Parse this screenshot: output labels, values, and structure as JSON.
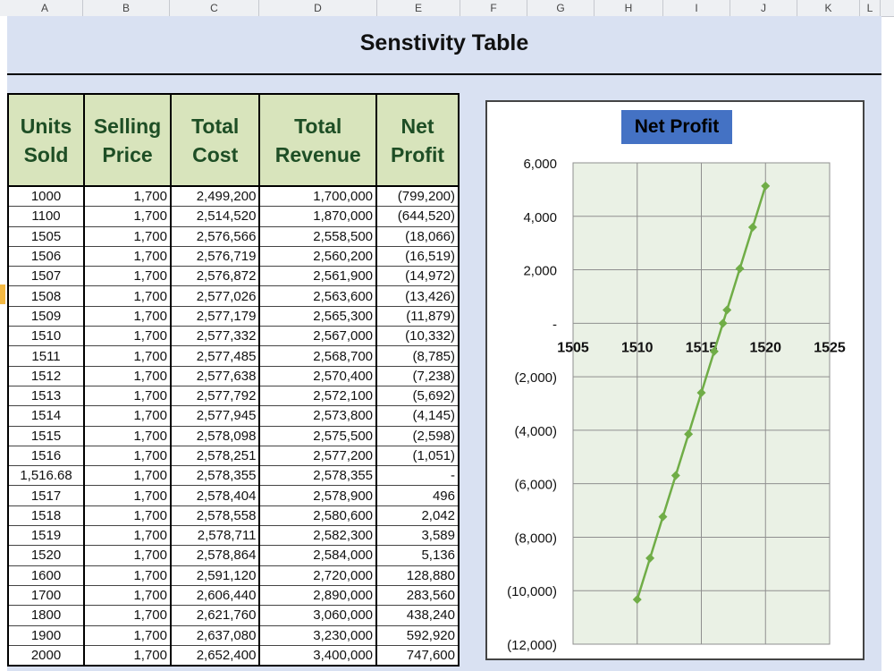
{
  "columns": [
    "A",
    "B",
    "C",
    "D",
    "E",
    "F",
    "G",
    "H",
    "I",
    "J",
    "K",
    "L"
  ],
  "title": "Senstivity Table",
  "table": {
    "headers": [
      {
        "line1": "Units",
        "line2": "Sold"
      },
      {
        "line1": "Selling",
        "line2": "Price"
      },
      {
        "line1": "Total",
        "line2": "Cost"
      },
      {
        "line1": "Total",
        "line2": "Revenue"
      },
      {
        "line1": "Net",
        "line2": "Profit"
      }
    ],
    "rows": [
      [
        "1000",
        "1,700",
        "2,499,200",
        "1,700,000",
        "(799,200)"
      ],
      [
        "1100",
        "1,700",
        "2,514,520",
        "1,870,000",
        "(644,520)"
      ],
      [
        "1505",
        "1,700",
        "2,576,566",
        "2,558,500",
        "(18,066)"
      ],
      [
        "1506",
        "1,700",
        "2,576,719",
        "2,560,200",
        "(16,519)"
      ],
      [
        "1507",
        "1,700",
        "2,576,872",
        "2,561,900",
        "(14,972)"
      ],
      [
        "1508",
        "1,700",
        "2,577,026",
        "2,563,600",
        "(13,426)"
      ],
      [
        "1509",
        "1,700",
        "2,577,179",
        "2,565,300",
        "(11,879)"
      ],
      [
        "1510",
        "1,700",
        "2,577,332",
        "2,567,000",
        "(10,332)"
      ],
      [
        "1511",
        "1,700",
        "2,577,485",
        "2,568,700",
        "(8,785)"
      ],
      [
        "1512",
        "1,700",
        "2,577,638",
        "2,570,400",
        "(7,238)"
      ],
      [
        "1513",
        "1,700",
        "2,577,792",
        "2,572,100",
        "(5,692)"
      ],
      [
        "1514",
        "1,700",
        "2,577,945",
        "2,573,800",
        "(4,145)"
      ],
      [
        "1515",
        "1,700",
        "2,578,098",
        "2,575,500",
        "(2,598)"
      ],
      [
        "1516",
        "1,700",
        "2,578,251",
        "2,577,200",
        "(1,051)"
      ],
      [
        "1,516.68",
        "1,700",
        "2,578,355",
        "2,578,355",
        "-"
      ],
      [
        "1517",
        "1,700",
        "2,578,404",
        "2,578,900",
        "496"
      ],
      [
        "1518",
        "1,700",
        "2,578,558",
        "2,580,600",
        "2,042"
      ],
      [
        "1519",
        "1,700",
        "2,578,711",
        "2,582,300",
        "3,589"
      ],
      [
        "1520",
        "1,700",
        "2,578,864",
        "2,584,000",
        "5,136"
      ],
      [
        "1600",
        "1,700",
        "2,591,120",
        "2,720,000",
        "128,880"
      ],
      [
        "1700",
        "1,700",
        "2,606,440",
        "2,890,000",
        "283,560"
      ],
      [
        "1800",
        "1,700",
        "2,621,760",
        "3,060,000",
        "438,240"
      ],
      [
        "1900",
        "1,700",
        "2,637,080",
        "3,230,000",
        "592,920"
      ],
      [
        "2000",
        "1,700",
        "2,652,400",
        "3,400,000",
        "747,600"
      ]
    ]
  },
  "colors": {
    "header_fill": "#d8e4bc",
    "band_fill": "#d9e1f2",
    "line": "#70ad47",
    "title_fill": "#4472c4"
  },
  "chart_data": {
    "type": "line",
    "title": "Net Profit",
    "xlim": [
      1505,
      1525
    ],
    "x_ticks": [
      "1505",
      "1510",
      "1515",
      "1520",
      "1525"
    ],
    "ylim": [
      -12000,
      6000
    ],
    "y_ticks": [
      {
        "value": 6000,
        "label": "6,000"
      },
      {
        "value": 4000,
        "label": "4,000"
      },
      {
        "value": 2000,
        "label": "2,000"
      },
      {
        "value": 0,
        "label": "-"
      },
      {
        "value": -2000,
        "label": "(2,000)"
      },
      {
        "value": -4000,
        "label": "(4,000)"
      },
      {
        "value": -6000,
        "label": "(6,000)"
      },
      {
        "value": -8000,
        "label": "(8,000)"
      },
      {
        "value": -10000,
        "label": "(10,000)"
      },
      {
        "value": -12000,
        "label": "(12,000)"
      }
    ],
    "grid": true,
    "series": [
      {
        "values": [
          {
            "x": 1510,
            "y": -10332
          },
          {
            "x": 1511,
            "y": -8785
          },
          {
            "x": 1512,
            "y": -7238
          },
          {
            "x": 1513,
            "y": -5692
          },
          {
            "x": 1514,
            "y": -4145
          },
          {
            "x": 1515,
            "y": -2598
          },
          {
            "x": 1516,
            "y": -1051
          },
          {
            "x": 1516.68,
            "y": 0
          },
          {
            "x": 1517,
            "y": 496
          },
          {
            "x": 1518,
            "y": 2042
          },
          {
            "x": 1519,
            "y": 3589
          },
          {
            "x": 1520,
            "y": 5136
          }
        ]
      }
    ]
  }
}
